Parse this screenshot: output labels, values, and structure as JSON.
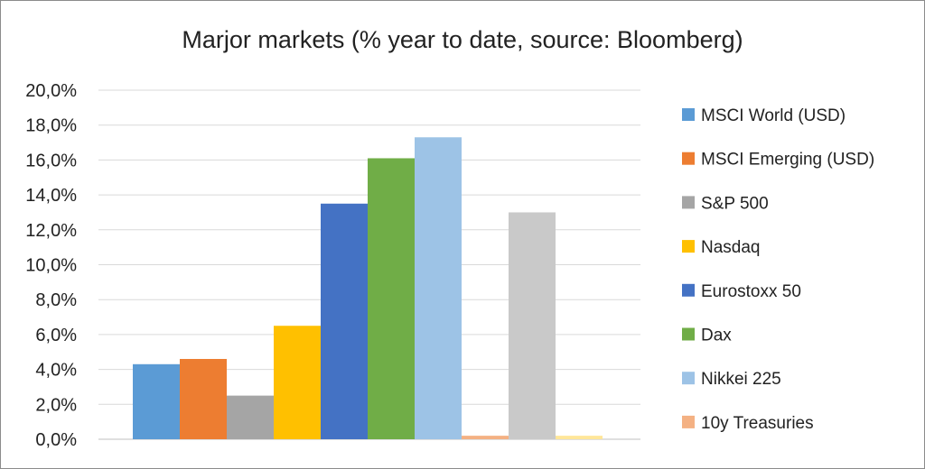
{
  "chart_data": {
    "type": "bar",
    "title": "Marjor markets (% year to date, source: Bloomberg)",
    "xlabel": "",
    "ylabel": "",
    "ylim": [
      0,
      20
    ],
    "ytick_step": 2,
    "ytick_format": "comma_one_decimal_percent",
    "grid": true,
    "legend_position": "right",
    "series": [
      {
        "name": "MSCI World (USD)",
        "value": 4.3,
        "color": "#5b9bd5"
      },
      {
        "name": "MSCI Emerging (USD)",
        "value": 4.6,
        "color": "#ed7d31"
      },
      {
        "name": "S&P 500",
        "value": 2.5,
        "color": "#a5a5a5"
      },
      {
        "name": "Nasdaq",
        "value": 6.5,
        "color": "#ffc000"
      },
      {
        "name": "Eurostoxx 50",
        "value": 13.5,
        "color": "#4472c4"
      },
      {
        "name": "Dax",
        "value": 16.1,
        "color": "#70ad47"
      },
      {
        "name": "Nikkei 225",
        "value": 17.3,
        "color": "#9dc3e6"
      },
      {
        "name": "10y Treasuries",
        "value": 0.2,
        "color": "#f4b183"
      },
      {
        "name": "",
        "value": 13.0,
        "color": "#c9c9c9"
      },
      {
        "name": "",
        "value": 0.2,
        "color": "#ffe699"
      }
    ]
  }
}
